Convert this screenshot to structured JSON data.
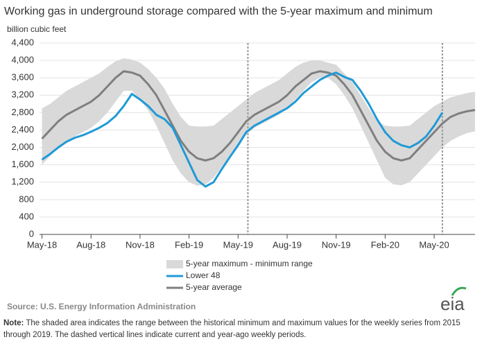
{
  "chart_data": {
    "type": "line",
    "title": "Working gas in underground storage compared with the 5-year maximum and minimum",
    "y_label": "billion cubic feet",
    "source": "Source: U.S. Energy Information Administration",
    "logo": "eia",
    "note_label": "Note:",
    "note": "The shaded area indicates the range between the historical minimum and maximum values for the weekly series from 2015 through 2019. The dashed vertical lines indicate current and year-ago weekly periods.",
    "x": [
      0,
      0.5,
      1,
      1.5,
      2,
      2.5,
      3,
      3.5,
      4,
      4.5,
      5,
      5.5,
      6,
      6.5,
      7,
      7.5,
      8,
      8.5,
      9,
      9.5,
      10,
      10.5,
      11,
      11.5,
      12,
      12.5,
      13,
      13.5,
      14,
      14.5,
      15,
      15.5,
      16,
      16.5,
      17,
      17.5,
      18,
      18.5,
      19,
      19.5,
      20,
      20.5,
      21,
      21.5,
      22,
      22.5,
      23,
      23.5,
      24,
      24.5,
      25,
      25.5,
      26,
      26.5
    ],
    "series": [
      {
        "name": "5-year maximum - minimum range",
        "color": "#d9d9d9",
        "upper": [
          2900,
          3000,
          3150,
          3300,
          3400,
          3500,
          3600,
          3700,
          3850,
          3980,
          4050,
          4020,
          3950,
          3800,
          3600,
          3350,
          3000,
          2700,
          2500,
          2480,
          2480,
          2500,
          2650,
          2800,
          2950,
          3100,
          3250,
          3350,
          3450,
          3550,
          3700,
          3850,
          3950,
          4000,
          4000,
          3950,
          3900,
          3700,
          3500,
          3200,
          2900,
          2600,
          2500,
          2480,
          2480,
          2500,
          2650,
          2800,
          2950,
          3050,
          3150,
          3200,
          3250,
          3280
        ],
        "lower": [
          1600,
          1800,
          2000,
          2150,
          2250,
          2350,
          2450,
          2600,
          2800,
          3050,
          3300,
          3300,
          3100,
          2850,
          2500,
          2100,
          1700,
          1400,
          1200,
          1120,
          1150,
          1300,
          1550,
          1800,
          2050,
          2300,
          2450,
          2550,
          2650,
          2750,
          2900,
          3100,
          3300,
          3500,
          3600,
          3600,
          3450,
          3200,
          2900,
          2500,
          2100,
          1700,
          1300,
          1150,
          1130,
          1200,
          1400,
          1600,
          1800,
          2000,
          2150,
          2250,
          2330,
          2370
        ]
      },
      {
        "name": "Lower 48",
        "color": "#1f9ad6",
        "values": [
          1720,
          1850,
          2000,
          2130,
          2220,
          2280,
          2360,
          2450,
          2560,
          2720,
          2950,
          3230,
          3100,
          2950,
          2750,
          2650,
          2450,
          2050,
          1650,
          1250,
          1100,
          1200,
          1500,
          1780,
          2050,
          2350,
          2500,
          2600,
          2700,
          2800,
          2900,
          3050,
          3250,
          3400,
          3550,
          3650,
          3720,
          3620,
          3550,
          3300,
          3000,
          2650,
          2350,
          2150,
          2050,
          2000,
          2100,
          2250,
          2500,
          2800,
          null,
          null,
          null,
          null
        ]
      },
      {
        "name": "5-year average",
        "color": "#7f7f7f",
        "values": [
          2200,
          2400,
          2600,
          2750,
          2850,
          2950,
          3050,
          3200,
          3400,
          3600,
          3750,
          3720,
          3650,
          3450,
          3200,
          2850,
          2500,
          2150,
          1900,
          1750,
          1700,
          1750,
          1900,
          2100,
          2350,
          2600,
          2750,
          2850,
          2950,
          3050,
          3200,
          3400,
          3550,
          3700,
          3750,
          3720,
          3650,
          3450,
          3200,
          2850,
          2500,
          2150,
          1900,
          1750,
          1700,
          1750,
          1950,
          2150,
          2350,
          2550,
          2700,
          2780,
          2830,
          2860
        ]
      }
    ],
    "vlines": [
      12.6,
      24.5
    ],
    "xlim": [
      -0.15,
      26.5
    ],
    "xticks": [
      {
        "value": 0,
        "label": "May-18"
      },
      {
        "value": 3,
        "label": "Aug-18"
      },
      {
        "value": 6,
        "label": "Nov-18"
      },
      {
        "value": 9,
        "label": "Feb-19"
      },
      {
        "value": 12,
        "label": "May-19"
      },
      {
        "value": 15,
        "label": "Aug-19"
      },
      {
        "value": 18,
        "label": "Nov-19"
      },
      {
        "value": 21,
        "label": "Feb-20"
      },
      {
        "value": 24,
        "label": "May-20"
      }
    ],
    "ylim": [
      0,
      4400
    ],
    "yticks": [
      0,
      400,
      800,
      {
        "value": 1200,
        "label": "1,200"
      },
      {
        "value": 1600,
        "label": "1,600"
      },
      {
        "value": 2000,
        "label": "2,000"
      },
      {
        "value": 2400,
        "label": "2,400"
      },
      {
        "value": 2800,
        "label": "2,800"
      },
      {
        "value": 3200,
        "label": "3,200"
      },
      {
        "value": 3600,
        "label": "3,600"
      },
      {
        "value": 4000,
        "label": "4,000"
      },
      {
        "value": 4400,
        "label": "4,400"
      }
    ],
    "grid": true
  }
}
